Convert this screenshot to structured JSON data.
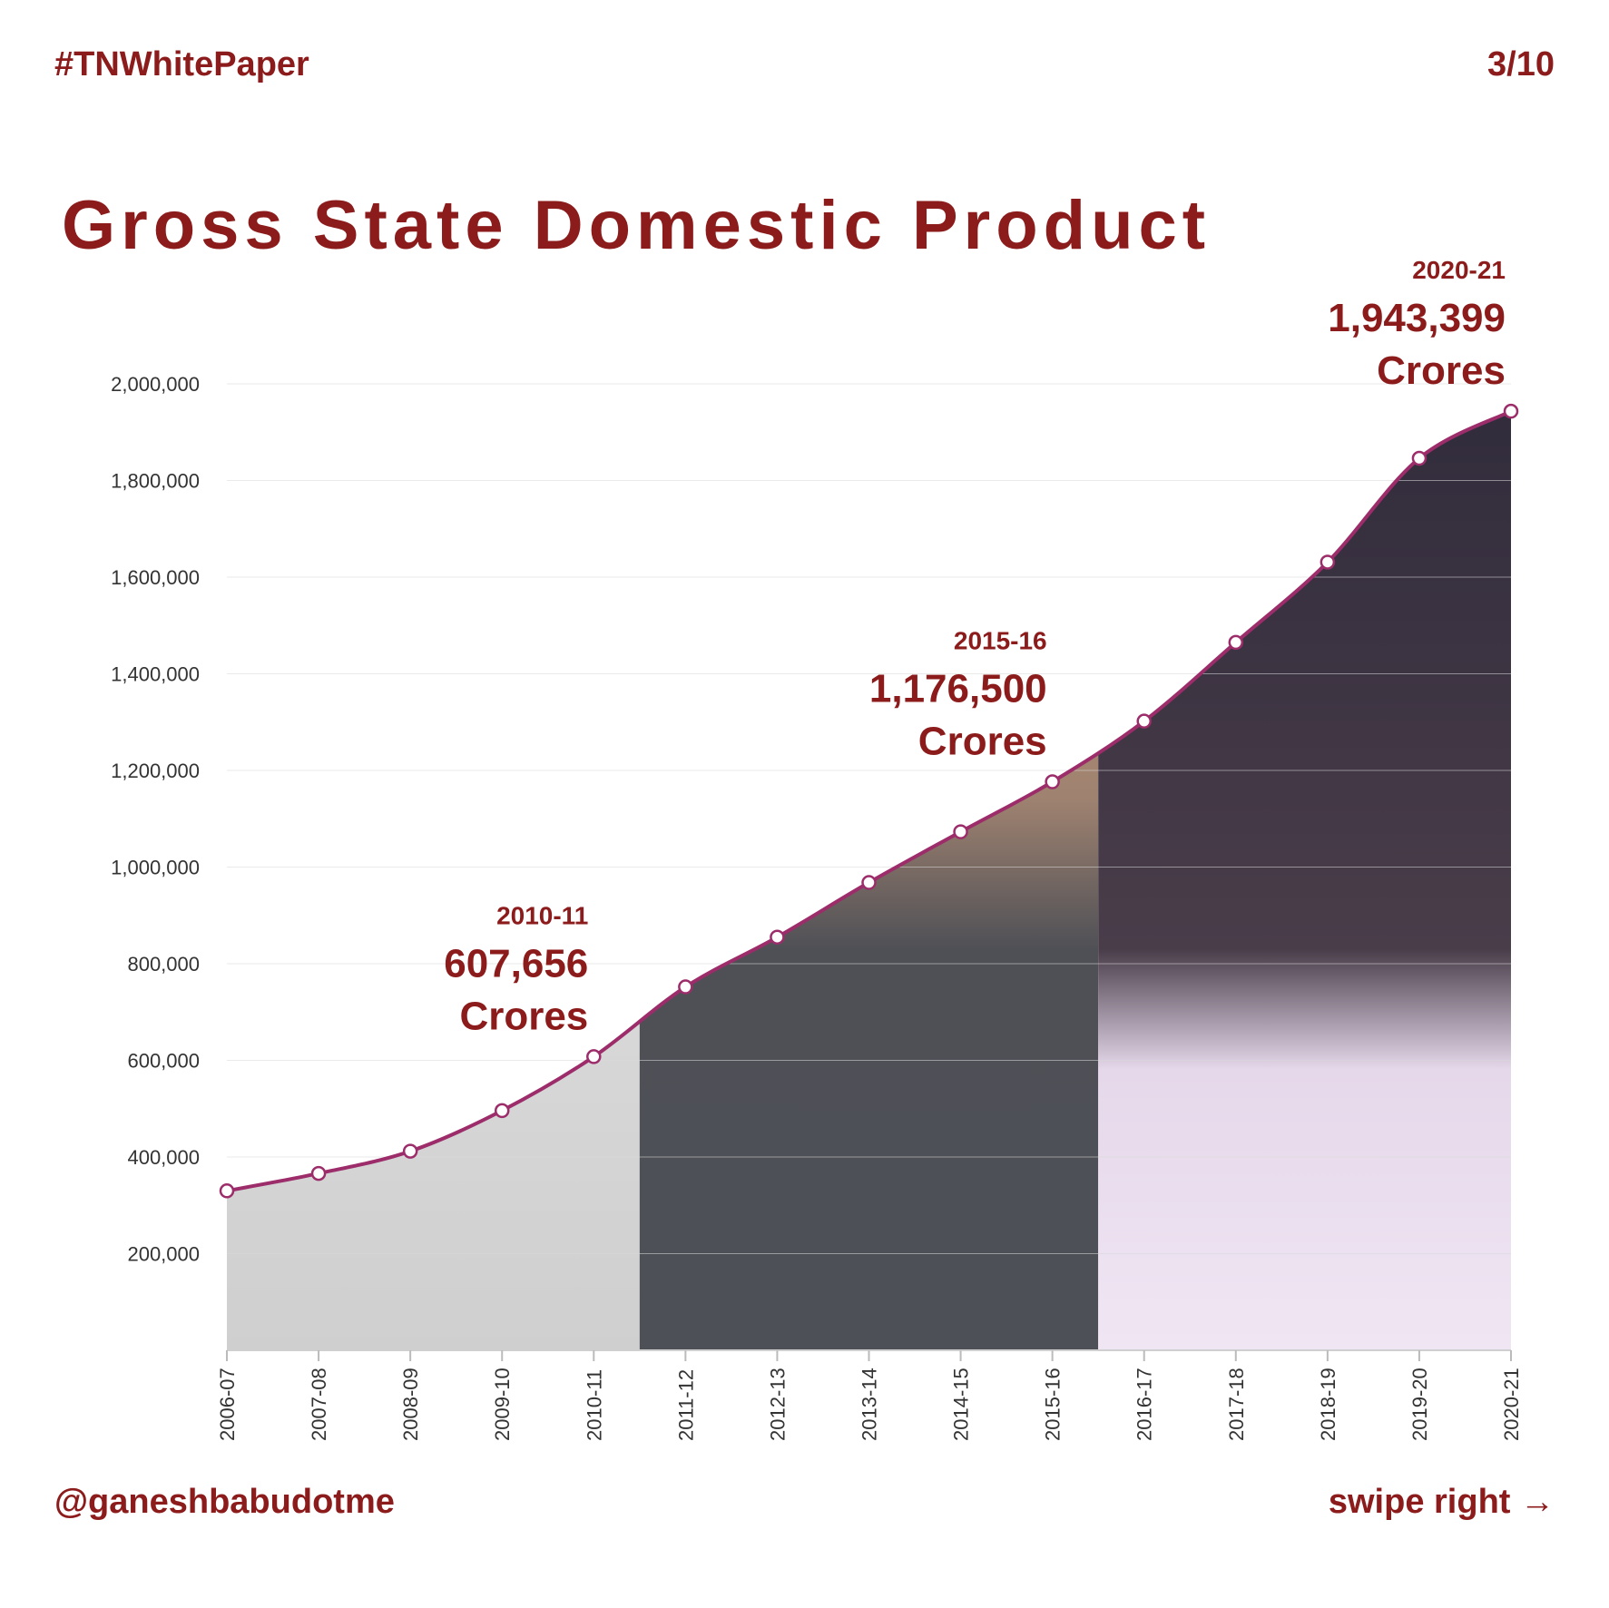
{
  "header": {
    "hashtag": "#TNWhitePaper",
    "page": "3/10"
  },
  "footer": {
    "handle": "@ganeshbabudotme",
    "swipe": "swipe right →"
  },
  "colors": {
    "accent": "#8c1b1b",
    "line": "#9c2c6a"
  },
  "chart_data": {
    "type": "area",
    "title": "Gross State Domestic Product",
    "categories": [
      "2006-07",
      "2007-08",
      "2008-09",
      "2009-10",
      "2010-11",
      "2011-12",
      "2012-13",
      "2013-14",
      "2014-15",
      "2015-16",
      "2016-17",
      "2017-18",
      "2018-19",
      "2019-20",
      "2020-21"
    ],
    "values": [
      330000,
      366000,
      412000,
      496000,
      607656,
      752000,
      855000,
      968000,
      1073000,
      1176500,
      1302000,
      1465000,
      1631000,
      1846000,
      1943399
    ],
    "y_ticks": [
      "200,000",
      "400,000",
      "600,000",
      "800,000",
      "1,000,000",
      "1,200,000",
      "1,400,000",
      "1,600,000",
      "1,800,000",
      "2,000,000"
    ],
    "ylim": [
      0,
      2000000
    ],
    "grid": true,
    "annotations": [
      {
        "index": 4,
        "year": "2010-11",
        "value": "607,656",
        "unit": "Crores"
      },
      {
        "index": 9,
        "year": "2015-16",
        "value": "1,176,500",
        "unit": "Crores"
      },
      {
        "index": 14,
        "year": "2020-21",
        "value": "1,943,399",
        "unit": "Crores"
      }
    ]
  }
}
